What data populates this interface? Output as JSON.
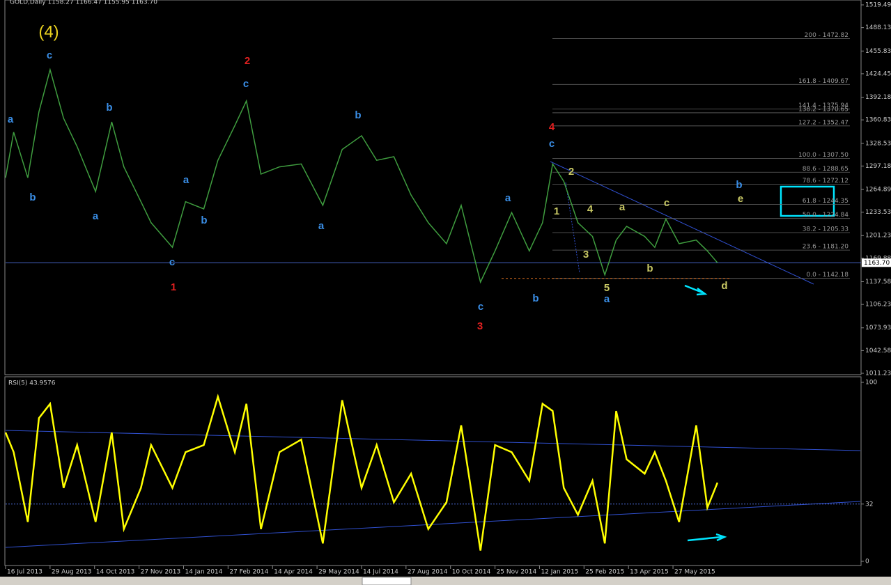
{
  "chart_data": [
    {
      "type": "line",
      "title": "GOLD,Daily  1158.27 1166.47 1155.95 1163.70",
      "color": "#3f9d3f",
      "x": [
        "16 Jul 2013",
        "24 Jul 2013",
        "7 Aug 2013",
        "18 Aug 2013",
        "29 Aug 2013",
        "12 Sep 2013",
        "26 Sep 2013",
        "15 Oct 2013",
        "31 Oct 2013",
        "12 Nov 2013",
        "29 Nov 2013",
        "10 Dec 2013",
        "2 Jan 2014",
        "16 Jan 2014",
        "3 Feb 2014",
        "17 Feb 2014",
        "6 Mar 2014",
        "18 Mar 2014",
        "2 Apr 2014",
        "21 Apr 2014",
        "13 May 2014",
        "4 Jun 2014",
        "24 Jun 2014",
        "14 Jul 2014",
        "29 Jul 2014",
        "15 Aug 2014",
        "1 Sep 2014",
        "18 Sep 2014",
        "6 Oct 2014",
        "21 Oct 2014",
        "10 Nov 2014",
        "25 Nov 2014",
        "13 Dec 2014",
        "1 Jan 2015",
        "15 Jan 2015",
        "25 Jan 2015",
        "5 Feb 2015",
        "19 Feb 2015",
        "6 Mar 2015",
        "19 Mar 2015",
        "31 Mar 2015",
        "11 Apr 2015",
        "29 Apr 2015",
        "9 May 2015",
        "20 May 2015",
        "2 Jun 2015",
        "19 Jun 2015",
        "30 Jun 2015",
        "10 Jul 2015"
      ],
      "values": [
        1281,
        1344,
        1281,
        1372,
        1430,
        1363,
        1324,
        1262,
        1358,
        1296,
        1248,
        1219,
        1185,
        1248,
        1238,
        1305,
        1353,
        1387,
        1286,
        1296,
        1300,
        1243,
        1320,
        1339,
        1305,
        1310,
        1257,
        1219,
        1190,
        1243,
        1137,
        1180,
        1233,
        1180,
        1219,
        1300,
        1276,
        1219,
        1200,
        1147,
        1195,
        1214,
        1200,
        1185,
        1224,
        1190,
        1195,
        1180,
        1163.7
      ],
      "ylim": [
        1011.23,
        1519.49
      ],
      "yticks": [
        1519.49,
        1488.13,
        1455.83,
        1424.45,
        1392.18,
        1360.83,
        1328.53,
        1297.18,
        1264.89,
        1233.53,
        1201.23,
        1169.88,
        1137.58,
        1106.23,
        1073.93,
        1042.58,
        1011.23
      ],
      "last": {
        "value": 1163.7,
        "label": "1163.70"
      },
      "levels": [
        {
          "value": 1472.82,
          "label": "200 - 1472.82"
        },
        {
          "value": 1409.67,
          "label": "161.8 - 1409.67"
        },
        {
          "value": 1375.94,
          "label": "141.4 - 1375.94"
        },
        {
          "value": 1370.65,
          "label": "138.2 - 1370.65"
        },
        {
          "value": 1352.47,
          "label": "127.2 - 1352.47"
        },
        {
          "value": 1307.5,
          "label": "100.0 - 1307.50"
        },
        {
          "value": 1288.65,
          "label": "88.6 - 1288.65"
        },
        {
          "value": 1272.12,
          "label": "78.6 - 1272.12"
        },
        {
          "value": 1244.35,
          "label": "61.8 - 1244.35"
        },
        {
          "value": 1224.84,
          "label": "50.0 - 1224.84"
        },
        {
          "value": 1205.33,
          "label": "38.2 - 1205.33"
        },
        {
          "value": 1181.2,
          "label": "23.6 - 1181.20"
        },
        {
          "value": 1142.18,
          "label": "0.0 - 1142.18"
        }
      ],
      "annotations": [
        {
          "text": "(4)",
          "color": "#e8d020"
        },
        {
          "text": "c",
          "color": "#3a8ee6"
        },
        {
          "text": "a",
          "color": "#3a8ee6"
        },
        {
          "text": "b",
          "color": "#3a8ee6"
        },
        {
          "text": "b",
          "color": "#3a8ee6"
        },
        {
          "text": "a",
          "color": "#3a8ee6"
        },
        {
          "text": "c",
          "color": "#3a8ee6"
        },
        {
          "text": "1",
          "color": "#e02020"
        },
        {
          "text": "a",
          "color": "#3a8ee6"
        },
        {
          "text": "b",
          "color": "#3a8ee6"
        },
        {
          "text": "2",
          "color": "#e02020"
        },
        {
          "text": "c",
          "color": "#3a8ee6"
        },
        {
          "text": "a",
          "color": "#3a8ee6"
        },
        {
          "text": "b",
          "color": "#3a8ee6"
        },
        {
          "text": "a",
          "color": "#3a8ee6"
        },
        {
          "text": "b",
          "color": "#3a8ee6"
        },
        {
          "text": "c",
          "color": "#3a8ee6"
        },
        {
          "text": "3",
          "color": "#e02020"
        },
        {
          "text": "4",
          "color": "#e02020"
        },
        {
          "text": "c",
          "color": "#3a8ee6"
        },
        {
          "text": "2",
          "color": "#c8c864"
        },
        {
          "text": "1",
          "color": "#c8c864"
        },
        {
          "text": "4",
          "color": "#c8c864"
        },
        {
          "text": "3",
          "color": "#c8c864"
        },
        {
          "text": "5",
          "color": "#c8c864"
        },
        {
          "text": "a",
          "color": "#3a8ee6"
        },
        {
          "text": "a",
          "color": "#c8c864"
        },
        {
          "text": "b",
          "color": "#c8c864"
        },
        {
          "text": "c",
          "color": "#c8c864"
        },
        {
          "text": "d",
          "color": "#c8c864"
        },
        {
          "text": "e",
          "color": "#c8c864"
        },
        {
          "text": "b",
          "color": "#3a8ee6"
        }
      ]
    },
    {
      "type": "line",
      "title": "RSI(5) 43.9576",
      "color": "#ffff00",
      "x": [
        "16 Jul 2013",
        "24 Jul 2013",
        "7 Aug 2013",
        "18 Aug 2013",
        "29 Aug 2013",
        "12 Sep 2013",
        "26 Sep 2013",
        "15 Oct 2013",
        "31 Oct 2013",
        "12 Nov 2013",
        "29 Nov 2013",
        "10 Dec 2013",
        "2 Jan 2014",
        "16 Jan 2014",
        "3 Feb 2014",
        "17 Feb 2014",
        "6 Mar 2014",
        "18 Mar 2014",
        "2 Apr 2014",
        "21 Apr 2014",
        "13 May 2014",
        "4 Jun 2014",
        "24 Jun 2014",
        "14 Jul 2014",
        "29 Jul 2014",
        "15 Aug 2014",
        "1 Sep 2014",
        "18 Sep 2014",
        "6 Oct 2014",
        "21 Oct 2014",
        "10 Nov 2014",
        "25 Nov 2014",
        "13 Dec 2014",
        "1 Jan 2015",
        "15 Jan 2015",
        "25 Jan 2015",
        "5 Feb 2015",
        "19 Feb 2015",
        "6 Mar 2015",
        "19 Mar 2015",
        "31 Mar 2015",
        "11 Apr 2015",
        "29 Apr 2015",
        "9 May 2015",
        "20 May 2015",
        "2 Jun 2015",
        "19 Jun 2015",
        "30 Jun 2015",
        "10 Jul 2015"
      ],
      "values": [
        72,
        61,
        22,
        80,
        88,
        41,
        65,
        22,
        72,
        18,
        41,
        65,
        41,
        61,
        65,
        92,
        61,
        88,
        18,
        61,
        68,
        10,
        90,
        41,
        65,
        33,
        49,
        18,
        33,
        76,
        6,
        65,
        61,
        45,
        88,
        84,
        41,
        26,
        45,
        10,
        84,
        57,
        49,
        61,
        45,
        22,
        76,
        30,
        43.9576
      ],
      "ylim": [
        0,
        100
      ],
      "yticks": [
        0,
        32,
        100
      ],
      "level": 32,
      "xticks": [
        "16 Jul 2013",
        "29 Aug 2013",
        "14 Oct 2013",
        "27 Nov 2013",
        "14 Jan 2014",
        "27 Feb 2014",
        "14 Apr 2014",
        "29 May 2014",
        "14 Jul 2014",
        "27 Aug 2014",
        "10 Oct 2014",
        "25 Nov 2014",
        "12 Jan 2015",
        "25 Feb 2015",
        "13 Apr 2015",
        "27 May 2015"
      ]
    }
  ]
}
